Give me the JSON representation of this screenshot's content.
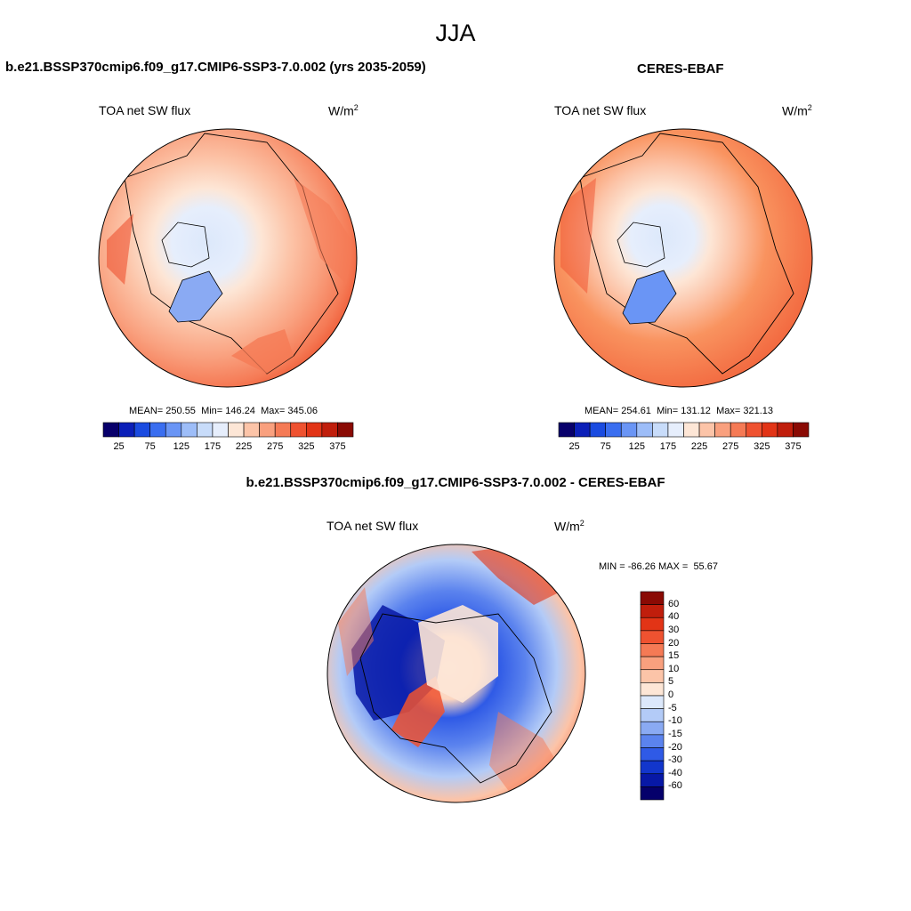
{
  "title": "JJA",
  "panels": [
    {
      "id": "model",
      "title": "b.e21.BSSP370cmip6.f09_g17.CMIP6-SSP3-7.0.002 (yrs 2035-2059)",
      "variable": "TOA net SW flux",
      "units": "W/m",
      "units_sup": "2",
      "stats": {
        "mean_label": "MEAN=",
        "mean": "250.55",
        "min_label": "Min=",
        "min": "146.24",
        "max_label": "Max=",
        "max": "345.06"
      }
    },
    {
      "id": "obs",
      "title": "CERES-EBAF",
      "variable": "TOA net SW flux",
      "units": "W/m",
      "units_sup": "2",
      "stats": {
        "mean_label": "MEAN=",
        "mean": "254.61",
        "min_label": "Min=",
        "min": "131.12",
        "max_label": "Max=",
        "max": "321.13"
      }
    },
    {
      "id": "diff",
      "title": "b.e21.BSSP370cmip6.f09_g17.CMIP6-SSP3-7.0.002 - CERES-EBAF",
      "variable": "TOA net SW flux",
      "units": "W/m",
      "units_sup": "2",
      "stats": {
        "min_label": "MIN =",
        "min": "-86.26",
        "max_label": "MAX =",
        "max": "55.67"
      }
    }
  ],
  "colorbar_abs": {
    "labels": [
      "25",
      "75",
      "125",
      "175",
      "225",
      "275",
      "325",
      "375"
    ],
    "colors": [
      "#08006b",
      "#0b1fb8",
      "#1a4be0",
      "#3a6ef0",
      "#6a95f5",
      "#9dbdf8",
      "#c8dcfa",
      "#e6eefc",
      "#fde6d6",
      "#fcc4a8",
      "#f9a07e",
      "#f57a55",
      "#ef5230",
      "#e23416",
      "#c01e0c",
      "#8a0a04"
    ]
  },
  "colorbar_diff": {
    "labels": [
      "60",
      "40",
      "30",
      "20",
      "15",
      "10",
      "5",
      "0",
      "-5",
      "-10",
      "-15",
      "-20",
      "-30",
      "-40",
      "-60"
    ],
    "colors": [
      "#8a0a04",
      "#c01e0c",
      "#e23416",
      "#ef5230",
      "#f57a55",
      "#f9a07e",
      "#fcc4a8",
      "#fde6d6",
      "#dce8fb",
      "#b3cbf7",
      "#8aaaf3",
      "#5b83ee",
      "#2f5ae6",
      "#1236cc",
      "#0718a6",
      "#05006b"
    ]
  }
}
